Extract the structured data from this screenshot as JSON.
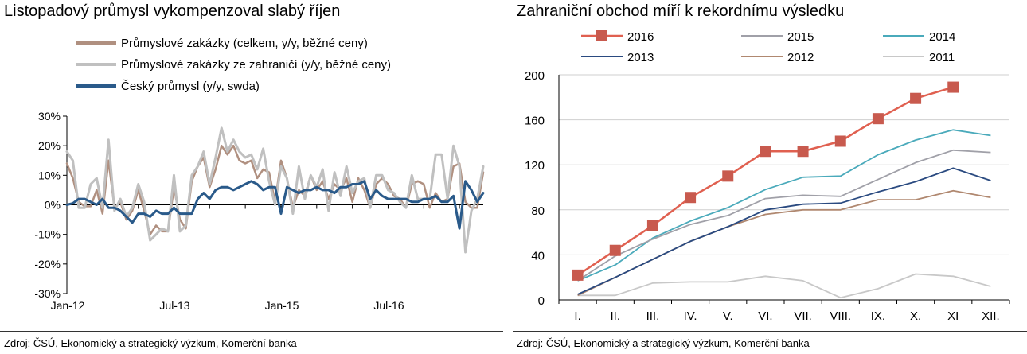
{
  "panels": [
    {
      "title": "Listopadový průmysl vykompenzoval slabý říjen",
      "source": "Zdroj: ČSÚ, Ekonomický a strategický výzkum, Komerční banka"
    },
    {
      "title": "Zahraniční obchod míří k rekordnímu výsledku",
      "source": "Zdroj: ČSÚ, Ekonomický a strategický výzkum, Komerční banka"
    }
  ],
  "chart_data": [
    {
      "type": "line",
      "title": "Listopadový průmysl vykompenzoval slabý říjen",
      "x_tick_labels": [
        "Jan-12",
        "Jul-13",
        "Jan-15",
        "Jul-16"
      ],
      "x_tick_months": [
        0,
        18,
        36,
        54
      ],
      "ylim": [
        -30,
        30
      ],
      "y_ticks": [
        -30,
        -20,
        -10,
        0,
        10,
        20,
        30
      ],
      "y_tick_labels": [
        "-30%",
        "-20%",
        "-10%",
        "0%",
        "10%",
        "20%",
        "30%"
      ],
      "grid": false,
      "legend": "top-left",
      "x_start": "2012-01",
      "series": [
        {
          "name": "Průmyslové zakázky (celkem, y/y, běžné ceny)",
          "color": "#b09080",
          "values": [
            14,
            9,
            1,
            -0.5,
            -0.5,
            5,
            -3,
            15,
            -1,
            1,
            -5,
            -2,
            5,
            -2,
            -10,
            -7,
            -9,
            -9,
            6,
            -5,
            -8,
            8,
            13,
            16,
            6,
            12,
            20,
            17,
            20,
            15,
            14,
            15,
            9,
            12,
            11,
            1,
            15,
            9,
            -1,
            5,
            3,
            10,
            5,
            8,
            2,
            7,
            5,
            9,
            1,
            9,
            5,
            -1,
            7,
            9,
            7,
            3,
            2,
            -1,
            7,
            8,
            7,
            -1,
            4,
            1,
            2,
            13,
            14,
            1,
            -1,
            -1,
            11
          ],
          "width": 2.5
        },
        {
          "name": "Průmyslové zakázky ze zahraničí (y/y, běžné ceny)",
          "color": "#c0c0c0",
          "values": [
            18,
            15,
            -1,
            -1,
            7,
            9,
            -1,
            22,
            -2,
            2,
            -4,
            -1,
            7,
            1,
            -12,
            -10,
            -8,
            -9,
            10,
            -9,
            -7,
            10,
            13,
            18,
            7,
            16,
            26,
            18,
            22,
            18,
            16,
            17,
            12,
            19,
            8,
            0,
            13,
            9,
            -3,
            13,
            2,
            10,
            6,
            12,
            -2,
            11,
            3,
            13,
            4,
            8,
            9,
            -1,
            10,
            10,
            5,
            4,
            1,
            -1,
            10,
            2,
            2,
            2,
            17,
            17,
            2,
            20,
            13,
            -16,
            -2,
            2,
            13
          ],
          "width": 3
        },
        {
          "name": "Český průmysl (y/y, swda)",
          "color": "#2a5a8a",
          "values": [
            0,
            0.5,
            2,
            2,
            1,
            0,
            2,
            -1,
            -1,
            -2,
            -4,
            -6,
            -3,
            -3,
            -4,
            -2,
            -3,
            -3,
            -1,
            -3,
            -3,
            -3,
            2,
            4,
            2,
            5,
            6,
            6,
            5,
            6,
            7,
            8,
            7,
            5,
            6,
            6,
            -3,
            6,
            5,
            4,
            5,
            5,
            6,
            5,
            5,
            4,
            6,
            6,
            7,
            7,
            8,
            2,
            5,
            3,
            2,
            2,
            2,
            2,
            1,
            1,
            2,
            2,
            3,
            1,
            1,
            3,
            -8,
            8,
            5,
            1,
            4
          ],
          "width": 3
        }
      ]
    },
    {
      "type": "line",
      "title": "Zahraniční obchod míří k rekordnímu výsledku",
      "categories": [
        "I.",
        "II.",
        "III.",
        "IV.",
        "V.",
        "VI.",
        "VII.",
        "VIII.",
        "IX.",
        "X.",
        "XI",
        "XII."
      ],
      "ylim": [
        0,
        200
      ],
      "y_ticks": [
        0,
        40,
        80,
        120,
        160,
        200
      ],
      "y_tick_labels": [
        "0",
        "40",
        "80",
        "120",
        "160",
        "200"
      ],
      "grid": true,
      "legend": "top",
      "series": [
        {
          "name": "2016",
          "color": "#e06050",
          "marker": "square",
          "values": [
            22,
            44,
            66,
            91,
            110,
            132,
            132,
            141,
            161,
            179,
            189,
            null
          ]
        },
        {
          "name": "2015",
          "color": "#a0a0a8",
          "values": [
            17,
            39,
            54,
            67,
            75,
            90,
            93,
            92,
            107,
            122,
            133,
            131
          ]
        },
        {
          "name": "2014",
          "color": "#4aaabb",
          "values": [
            17,
            31,
            55,
            70,
            82,
            98,
            109,
            110,
            129,
            142,
            151,
            146
          ]
        },
        {
          "name": "2013",
          "color": "#2a4a80",
          "values": [
            5,
            20,
            36,
            52,
            65,
            80,
            85,
            86,
            96,
            105,
            117,
            106
          ]
        },
        {
          "name": "2012",
          "color": "#b08870",
          "values": [
            4,
            20,
            36,
            52,
            65,
            76,
            80,
            80,
            89,
            89,
            97,
            91
          ]
        },
        {
          "name": "2011",
          "color": "#c8c8c8",
          "values": [
            4,
            4,
            15,
            16,
            16,
            21,
            17,
            2,
            10,
            23,
            21,
            12
          ]
        }
      ]
    }
  ]
}
